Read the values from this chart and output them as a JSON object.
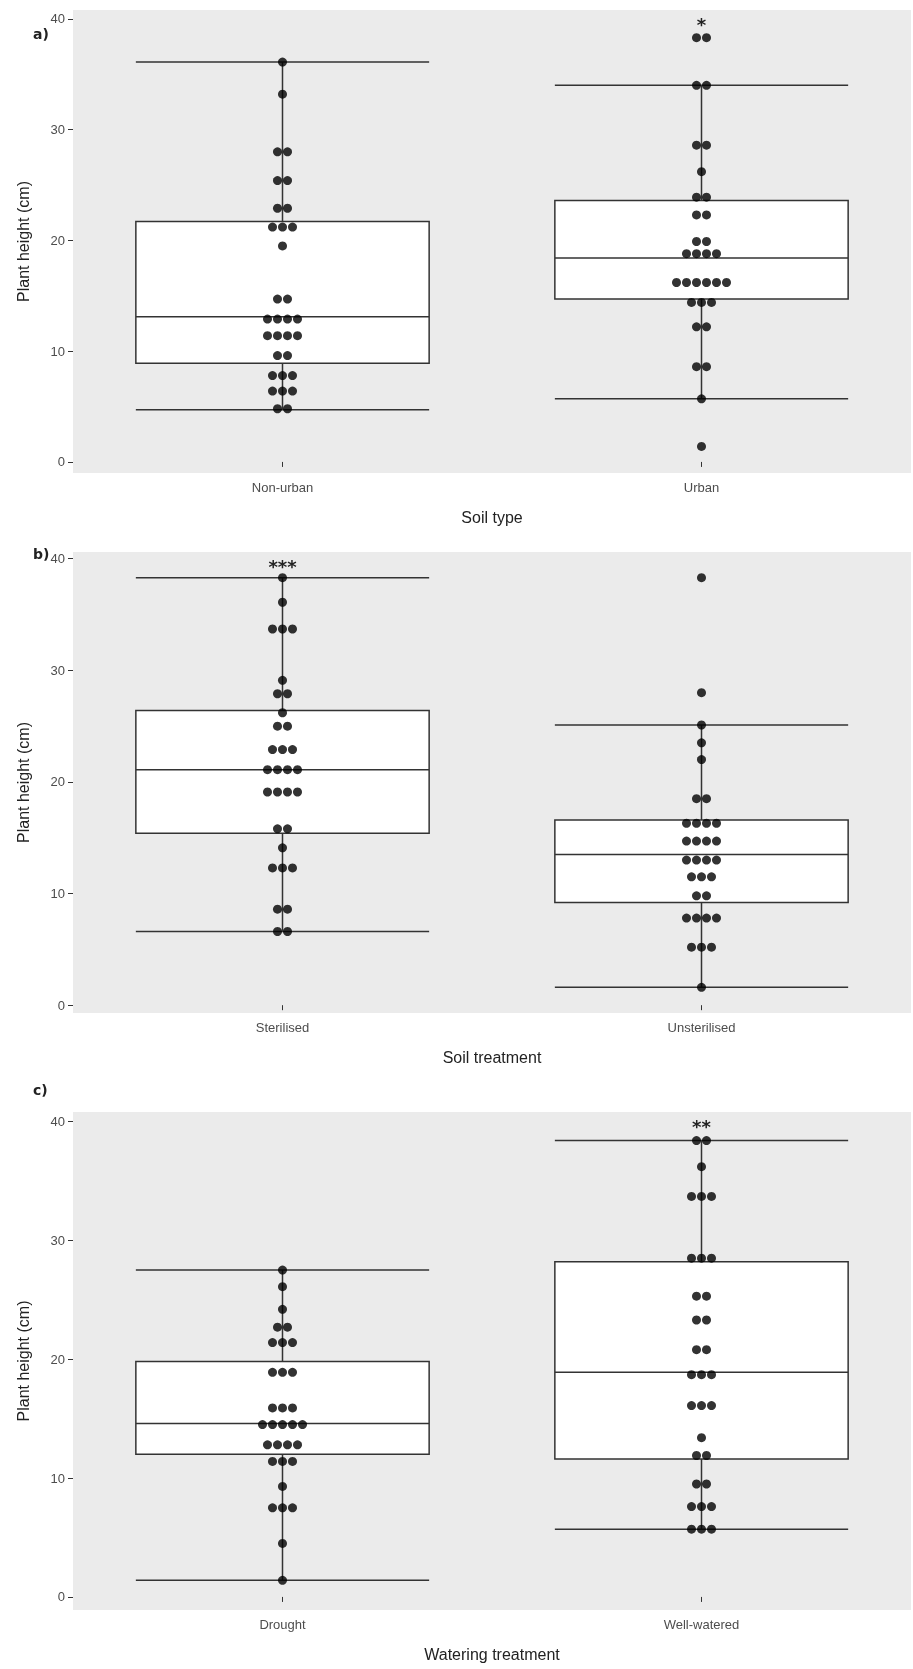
{
  "chart_data": [
    {
      "type": "box",
      "title": "a)",
      "categories": [
        "Non-urban",
        "Urban"
      ],
      "xlabel": "Soil type",
      "ylabel": "Plant height (cm)",
      "ylim": [
        -1,
        40.8
      ],
      "yticks": [
        0,
        10,
        20,
        30,
        40
      ],
      "grid": false,
      "series": [
        {
          "type": "box",
          "color": "#ffffff",
          "boxes": [
            {
              "low": 4.7,
              "q1": 8.9,
              "median": 13.1,
              "q3": 21.7,
              "high": 36.1
            },
            {
              "low": 5.7,
              "q1": 14.7,
              "median": 18.4,
              "q3": 23.6,
              "high": 34.0
            }
          ]
        },
        {
          "type": "scatter",
          "color": "#000000",
          "marker": "circle",
          "x": [
            "Non-urban",
            "Non-urban",
            "Non-urban",
            "Non-urban",
            "Non-urban",
            "Non-urban",
            "Non-urban",
            "Non-urban",
            "Non-urban",
            "Non-urban",
            "Non-urban",
            "Non-urban",
            "Non-urban",
            "Non-urban",
            "Non-urban",
            "Non-urban",
            "Non-urban",
            "Non-urban",
            "Non-urban",
            "Non-urban",
            "Non-urban",
            "Non-urban",
            "Non-urban",
            "Non-urban",
            "Non-urban",
            "Non-urban",
            "Non-urban",
            "Non-urban",
            "Non-urban",
            "Non-urban",
            "Non-urban",
            "Non-urban",
            "Urban",
            "Urban",
            "Urban",
            "Urban",
            "Urban",
            "Urban",
            "Urban",
            "Urban",
            "Urban",
            "Urban",
            "Urban",
            "Urban",
            "Urban",
            "Urban",
            "Urban",
            "Urban",
            "Urban",
            "Urban",
            "Urban",
            "Urban",
            "Urban",
            "Urban",
            "Urban",
            "Urban",
            "Urban",
            "Urban",
            "Urban",
            "Urban",
            "Urban",
            "Urban",
            "Urban",
            "Urban"
          ],
          "values": [
            36.1,
            33.2,
            28.0,
            28.0,
            25.4,
            25.4,
            22.9,
            22.9,
            21.2,
            21.2,
            21.2,
            19.5,
            14.7,
            14.7,
            12.9,
            12.9,
            12.9,
            12.9,
            11.4,
            11.4,
            11.4,
            11.4,
            9.6,
            9.6,
            7.8,
            7.8,
            7.8,
            6.4,
            6.4,
            6.4,
            4.8,
            4.8,
            38.3,
            38.3,
            34.0,
            34.0,
            28.6,
            28.6,
            26.2,
            23.9,
            23.9,
            22.3,
            22.3,
            19.9,
            19.9,
            18.8,
            18.8,
            18.8,
            18.8,
            16.2,
            16.2,
            16.2,
            16.2,
            16.2,
            16.2,
            14.4,
            14.4,
            14.4,
            12.2,
            12.2,
            8.6,
            8.6,
            5.7,
            1.4
          ]
        }
      ],
      "annotations": [
        "*"
      ]
    },
    {
      "type": "box",
      "title": "b)",
      "categories": [
        "Sterilised",
        "Unsterilised"
      ],
      "xlabel": "Soil treatment",
      "ylabel": "Plant height (cm)",
      "ylim": [
        -0.7,
        40.6
      ],
      "yticks": [
        0,
        10,
        20,
        30,
        40
      ],
      "grid": false,
      "series": [
        {
          "type": "box",
          "color": "#ffffff",
          "boxes": [
            {
              "low": 6.6,
              "q1": 15.4,
              "median": 21.1,
              "q3": 26.4,
              "high": 38.3
            },
            {
              "low": 1.6,
              "q1": 9.2,
              "median": 13.5,
              "q3": 16.6,
              "high": 25.1
            }
          ]
        },
        {
          "type": "scatter",
          "color": "#000000",
          "marker": "circle",
          "x": [
            "Sterilised",
            "Sterilised",
            "Sterilised",
            "Sterilised",
            "Sterilised",
            "Sterilised",
            "Sterilised",
            "Sterilised",
            "Sterilised",
            "Sterilised",
            "Sterilised",
            "Sterilised",
            "Sterilised",
            "Sterilised",
            "Sterilised",
            "Sterilised",
            "Sterilised",
            "Sterilised",
            "Sterilised",
            "Sterilised",
            "Sterilised",
            "Sterilised",
            "Sterilised",
            "Sterilised",
            "Sterilised",
            "Sterilised",
            "Sterilised",
            "Sterilised",
            "Sterilised",
            "Sterilised",
            "Sterilised",
            "Sterilised",
            "Unsterilised",
            "Unsterilised",
            "Unsterilised",
            "Unsterilised",
            "Unsterilised",
            "Unsterilised",
            "Unsterilised",
            "Unsterilised",
            "Unsterilised",
            "Unsterilised",
            "Unsterilised",
            "Unsterilised",
            "Unsterilised",
            "Unsterilised",
            "Unsterilised",
            "Unsterilised",
            "Unsterilised",
            "Unsterilised",
            "Unsterilised",
            "Unsterilised",
            "Unsterilised",
            "Unsterilised",
            "Unsterilised",
            "Unsterilised",
            "Unsterilised",
            "Unsterilised",
            "Unsterilised",
            "Unsterilised",
            "Unsterilised",
            "Unsterilised",
            "Unsterilised",
            "Unsterilised"
          ],
          "values": [
            38.3,
            36.1,
            33.7,
            33.7,
            33.7,
            29.1,
            27.9,
            27.9,
            26.2,
            25.0,
            25.0,
            22.9,
            22.9,
            22.9,
            21.1,
            21.1,
            21.1,
            21.1,
            19.1,
            19.1,
            19.1,
            19.1,
            15.8,
            15.8,
            14.1,
            12.3,
            12.3,
            12.3,
            8.6,
            8.6,
            6.6,
            6.6,
            38.3,
            28.0,
            25.1,
            23.5,
            22.0,
            18.5,
            18.5,
            16.3,
            16.3,
            16.3,
            16.3,
            14.7,
            14.7,
            14.7,
            14.7,
            13.0,
            13.0,
            13.0,
            13.0,
            11.5,
            11.5,
            11.5,
            9.8,
            9.8,
            7.8,
            7.8,
            7.8,
            7.8,
            5.2,
            5.2,
            5.2,
            1.6
          ]
        }
      ],
      "annotations": [
        "***"
      ]
    },
    {
      "type": "box",
      "title": "c)",
      "categories": [
        "Drought",
        "Well-watered"
      ],
      "xlabel": "Watering treatment",
      "ylabel": "Plant height (cm)",
      "ylim": [
        -1.1,
        40.8
      ],
      "yticks": [
        0,
        10,
        20,
        30,
        40
      ],
      "grid": false,
      "series": [
        {
          "type": "box",
          "color": "#ffffff",
          "boxes": [
            {
              "low": 1.4,
              "q1": 12.0,
              "median": 14.6,
              "q3": 19.8,
              "high": 27.5
            },
            {
              "low": 5.7,
              "q1": 11.6,
              "median": 18.9,
              "q3": 28.2,
              "high": 38.4
            }
          ]
        },
        {
          "type": "scatter",
          "color": "#000000",
          "marker": "circle",
          "x": [
            "Drought",
            "Drought",
            "Drought",
            "Drought",
            "Drought",
            "Drought",
            "Drought",
            "Drought",
            "Drought",
            "Drought",
            "Drought",
            "Drought",
            "Drought",
            "Drought",
            "Drought",
            "Drought",
            "Drought",
            "Drought",
            "Drought",
            "Drought",
            "Drought",
            "Drought",
            "Drought",
            "Drought",
            "Drought",
            "Drought",
            "Drought",
            "Drought",
            "Drought",
            "Drought",
            "Drought",
            "Drought",
            "Well-watered",
            "Well-watered",
            "Well-watered",
            "Well-watered",
            "Well-watered",
            "Well-watered",
            "Well-watered",
            "Well-watered",
            "Well-watered",
            "Well-watered",
            "Well-watered",
            "Well-watered",
            "Well-watered",
            "Well-watered",
            "Well-watered",
            "Well-watered",
            "Well-watered",
            "Well-watered",
            "Well-watered",
            "Well-watered",
            "Well-watered",
            "Well-watered",
            "Well-watered",
            "Well-watered",
            "Well-watered",
            "Well-watered",
            "Well-watered",
            "Well-watered",
            "Well-watered",
            "Well-watered",
            "Well-watered",
            "Well-watered"
          ],
          "values": [
            27.5,
            26.1,
            24.2,
            22.7,
            22.7,
            21.4,
            21.4,
            21.4,
            18.9,
            18.9,
            18.9,
            15.9,
            15.9,
            15.9,
            14.5,
            14.5,
            14.5,
            14.5,
            14.5,
            12.8,
            12.8,
            12.8,
            12.8,
            11.4,
            11.4,
            11.4,
            9.3,
            7.5,
            7.5,
            7.5,
            4.5,
            1.4,
            38.4,
            38.4,
            36.2,
            33.7,
            33.7,
            33.7,
            28.5,
            28.5,
            28.5,
            25.3,
            25.3,
            23.3,
            23.3,
            20.8,
            20.8,
            18.7,
            18.7,
            18.7,
            16.1,
            16.1,
            16.1,
            13.4,
            11.9,
            11.9,
            9.5,
            9.5,
            7.6,
            7.6,
            7.6,
            5.7,
            5.7,
            5.7
          ]
        }
      ],
      "annotations": [
        "**"
      ]
    }
  ]
}
